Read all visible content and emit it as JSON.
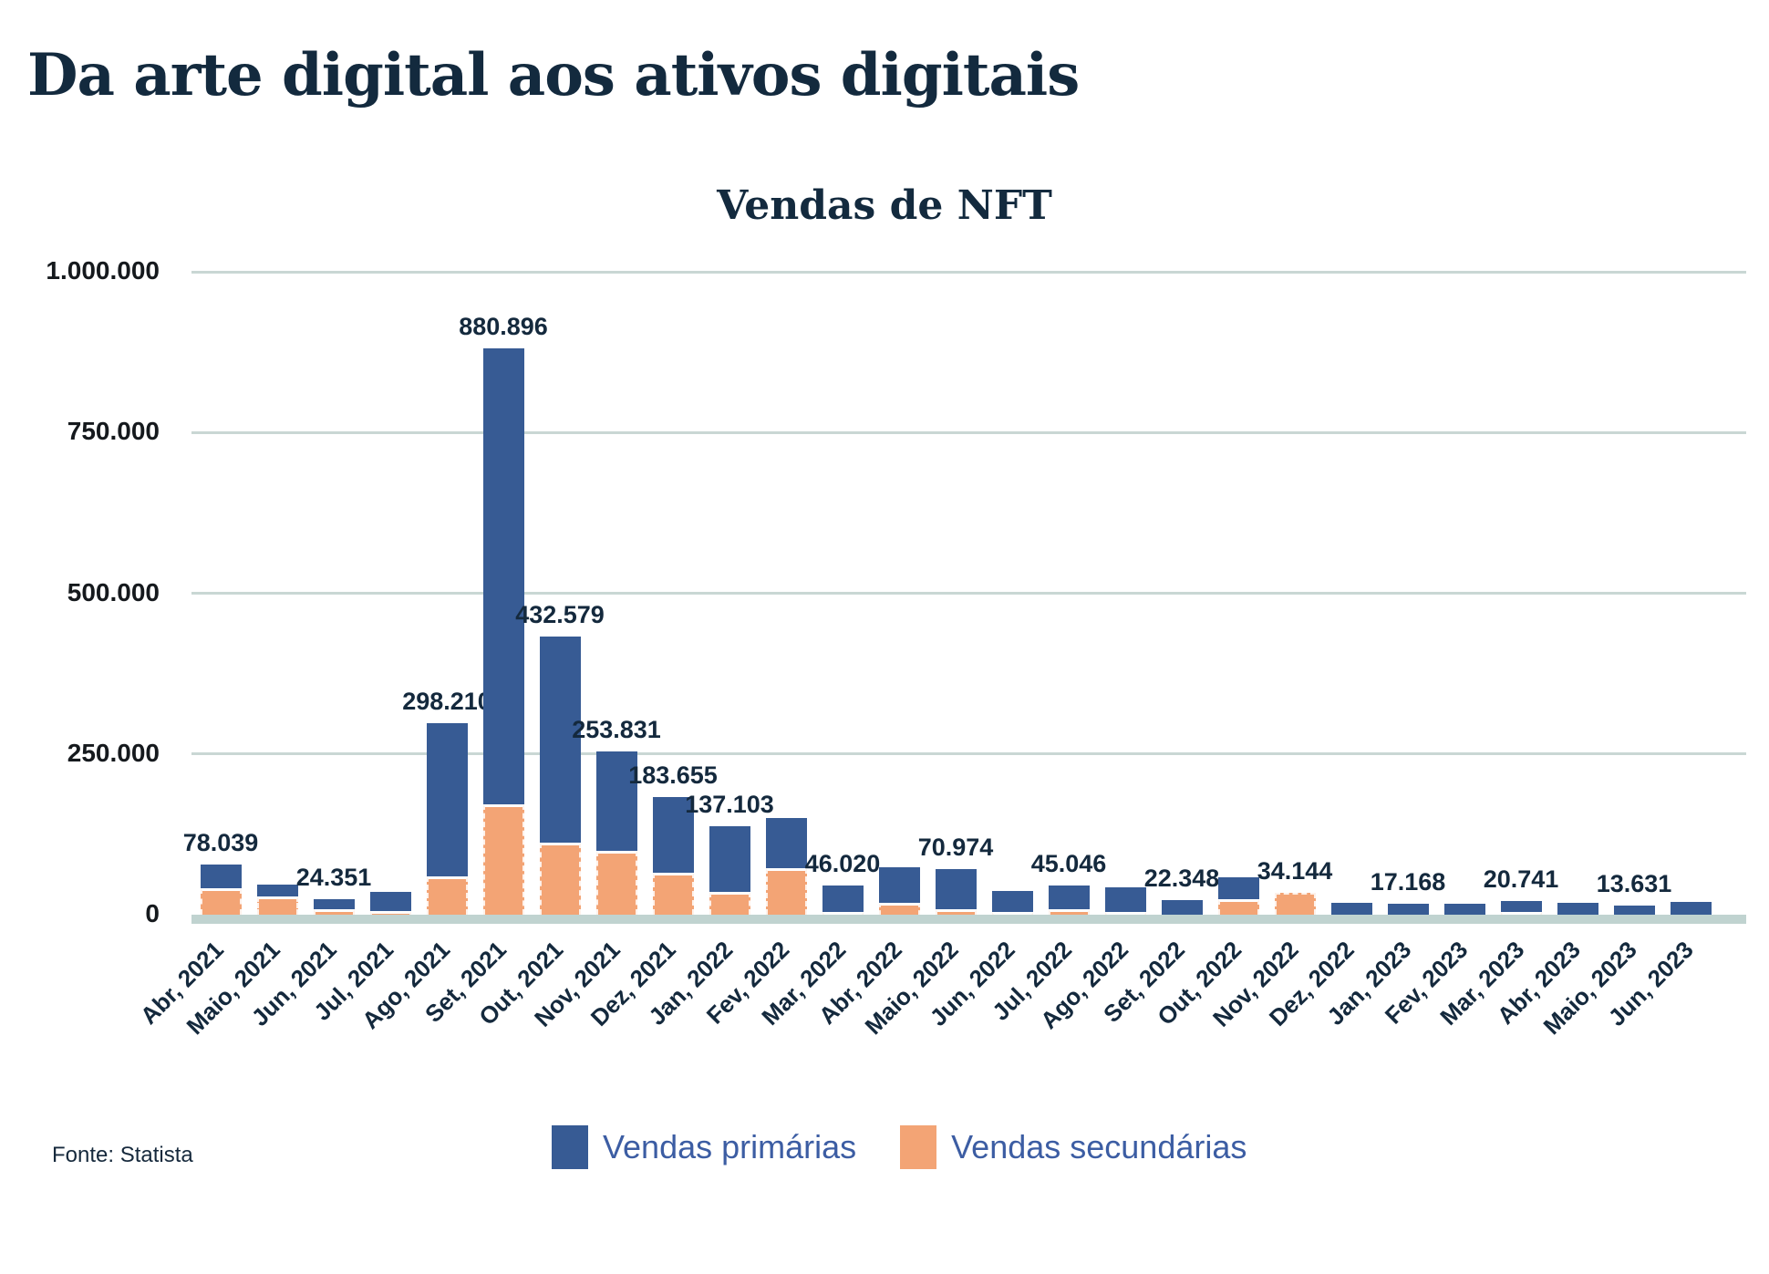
{
  "header": {
    "title": "Da arte digital aos ativos digitais"
  },
  "source": {
    "text": "Fonte: Statista"
  },
  "colors": {
    "primary_blue": "#375B94",
    "secondary_orange": "#F3A475",
    "title_navy": "#132A3E",
    "label_navy": "#14293D",
    "axis_text": "#15191D",
    "legend_text": "#3C5DA3",
    "gridline": "#C9D7D4",
    "baseline_band": "#C0D3D0",
    "background": "#FFFFFF"
  },
  "chart_data": {
    "type": "bar",
    "stacked": true,
    "title": "Vendas de NFT",
    "xlabel": "",
    "ylabel": "",
    "ylim": [
      0,
      1000000
    ],
    "grid": "horizontal",
    "legend_position": "bottom-center",
    "yticks": [
      {
        "value": 0,
        "label": "0"
      },
      {
        "value": 250000,
        "label": "250.000"
      },
      {
        "value": 500000,
        "label": "500.000"
      },
      {
        "value": 750000,
        "label": "750.000"
      },
      {
        "value": 1000000,
        "label": "1.000.000"
      }
    ],
    "categories": [
      "Abr, 2021",
      "Maio, 2021",
      "Jun, 2021",
      "Jul, 2021",
      "Ago, 2021",
      "Set, 2021",
      "Out, 2021",
      "Nov, 2021",
      "Dez, 2021",
      "Jan, 2022",
      "Fev, 2022",
      "Mar, 2022",
      "Abr, 2022",
      "Maio, 2022",
      "Jun, 2022",
      "Jul, 2022",
      "Ago, 2022",
      "Set, 2022",
      "Out, 2022",
      "Nov, 2022",
      "Dez, 2022",
      "Jan, 2023",
      "Fev, 2023",
      "Mar, 2023",
      "Abr, 2023",
      "Maio, 2023",
      "Jun, 2023"
    ],
    "series": [
      {
        "name": "Vendas primárias",
        "color": "#375B94",
        "values": [
          37039,
          18500,
          15351,
          30000,
          238210,
          708896,
          320579,
          154831,
          117655,
          101103,
          78000,
          41020,
          55000,
          62974,
          35000,
          36046,
          39000,
          22348,
          34000,
          0,
          18000,
          17168,
          17500,
          18741,
          18000,
          13631,
          19500
        ]
      },
      {
        "name": "Vendas secundárias",
        "color": "#F3A475",
        "values": [
          41000,
          28500,
          9000,
          6000,
          60000,
          172000,
          112000,
          99000,
          66000,
          36000,
          73000,
          5000,
          19000,
          8000,
          2000,
          9000,
          4000,
          0,
          24000,
          34144,
          0,
          0,
          0,
          2000,
          0,
          0,
          0
        ]
      }
    ],
    "totals": [
      78039,
      47000,
      24351,
      36000,
      298210,
      880896,
      432579,
      253831,
      183655,
      137103,
      151000,
      46020,
      74000,
      70974,
      37000,
      45046,
      43000,
      22348,
      58000,
      34144,
      18000,
      17168,
      17500,
      20741,
      18000,
      13631,
      19500
    ],
    "value_labels": [
      "78.039",
      null,
      "24.351",
      null,
      "298.210",
      "880.896",
      "432.579",
      "253.831",
      "183.655",
      "137.103",
      null,
      "46.020",
      null,
      "70.974",
      null,
      "45.046",
      null,
      "22.348",
      null,
      "34.144",
      null,
      "17.168",
      null,
      "20.741",
      null,
      "13.631",
      null
    ]
  }
}
